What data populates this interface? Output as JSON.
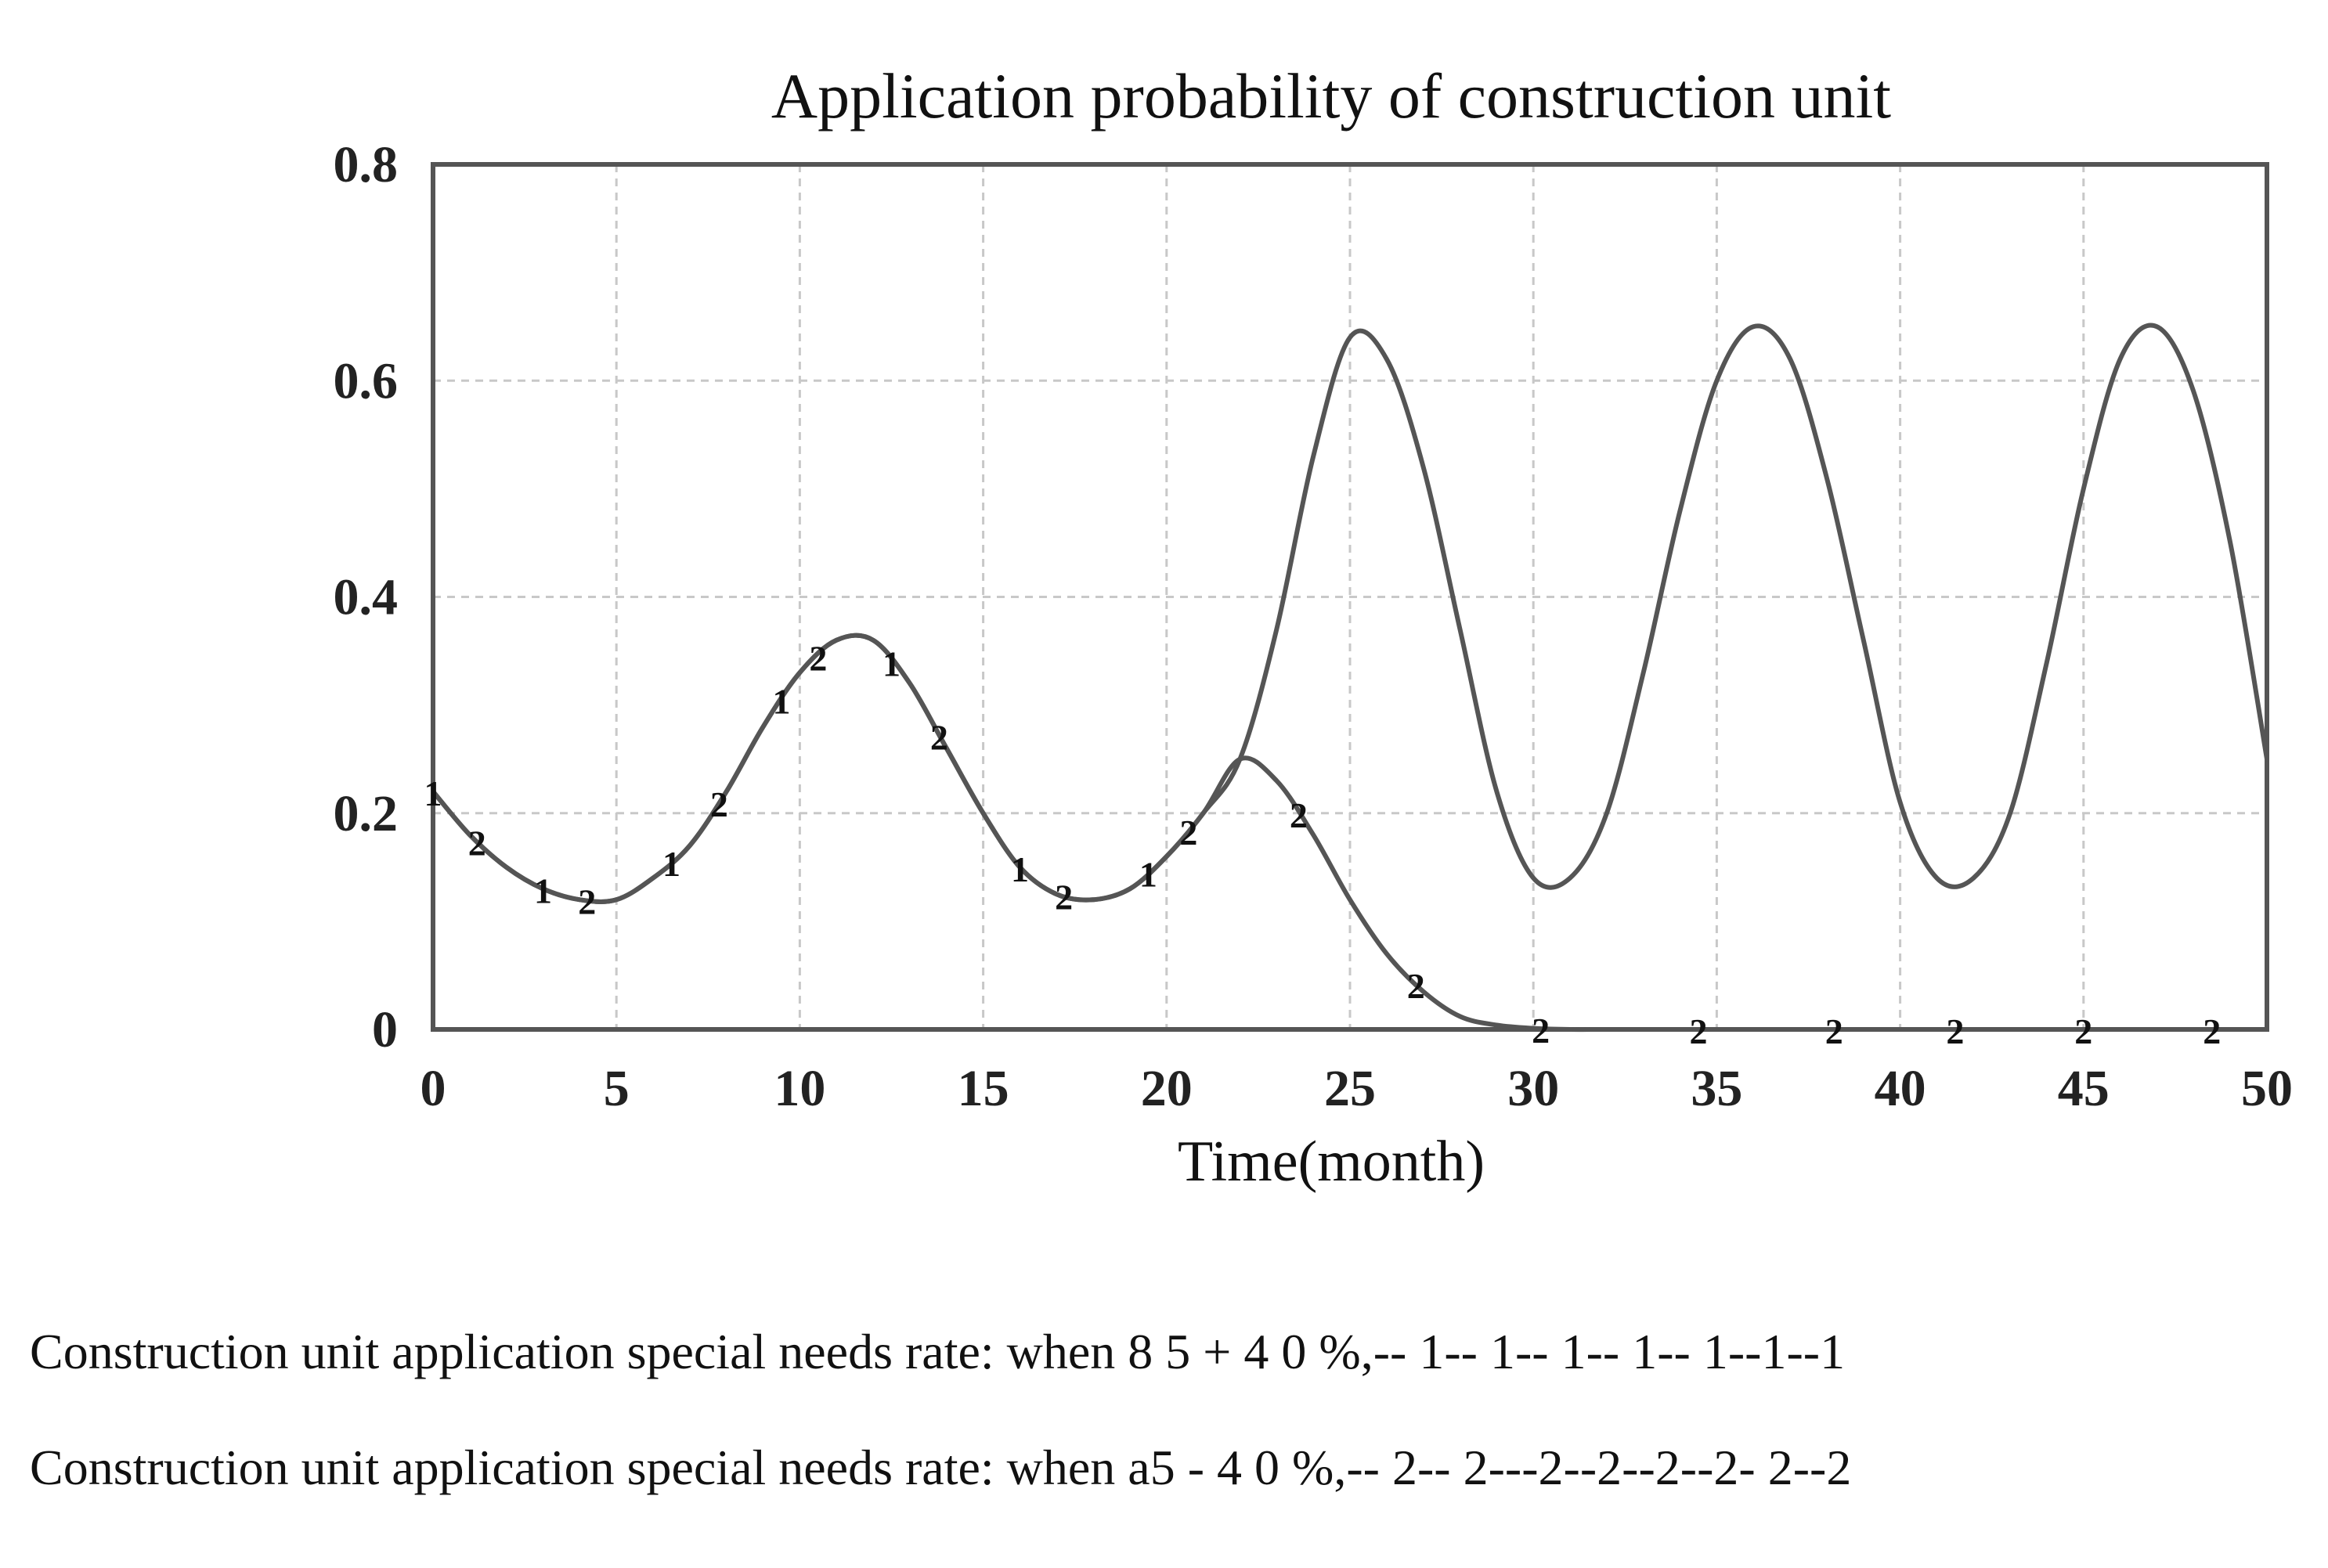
{
  "chart_data": {
    "type": "line",
    "title": "Application probability of construction unit",
    "xlabel": "Time(month)",
    "ylabel": "",
    "xlim": [
      0,
      50
    ],
    "ylim": [
      0,
      0.8
    ],
    "xticks": [
      0,
      5,
      10,
      15,
      20,
      25,
      30,
      35,
      40,
      45,
      50
    ],
    "yticks": [
      0,
      0.2,
      0.4,
      0.6,
      0.8
    ],
    "ytick_labels": [
      "0",
      "0.2",
      "0.4",
      "0.6",
      "0.8"
    ],
    "grid": true,
    "series": [
      {
        "name": "1",
        "marker_label": "1",
        "x": [
          0,
          1,
          2,
          3,
          4,
          5,
          6,
          7,
          8,
          9,
          10,
          11,
          12,
          13,
          14,
          15,
          16,
          17,
          18,
          19,
          20,
          21,
          22,
          23,
          24,
          25,
          26,
          27,
          28,
          29,
          30,
          31,
          32,
          33,
          34,
          35,
          36,
          37,
          38,
          39,
          40,
          41,
          42,
          43,
          44,
          45,
          46,
          47,
          48,
          49,
          50
        ],
        "values": [
          0.22,
          0.18,
          0.15,
          0.13,
          0.12,
          0.12,
          0.14,
          0.17,
          0.22,
          0.28,
          0.33,
          0.36,
          0.36,
          0.32,
          0.26,
          0.2,
          0.15,
          0.125,
          0.12,
          0.13,
          0.16,
          0.2,
          0.25,
          0.37,
          0.53,
          0.64,
          0.62,
          0.52,
          0.37,
          0.22,
          0.14,
          0.14,
          0.2,
          0.33,
          0.48,
          0.6,
          0.65,
          0.62,
          0.51,
          0.36,
          0.21,
          0.14,
          0.14,
          0.2,
          0.34,
          0.5,
          0.62,
          0.65,
          0.59,
          0.45,
          0.25
        ],
        "marker_x": [
          0,
          3,
          6.5,
          9.5,
          12.5,
          16,
          19.5
        ]
      },
      {
        "name": "2",
        "marker_label": "2",
        "x": [
          0,
          1,
          2,
          3,
          4,
          5,
          6,
          7,
          8,
          9,
          10,
          11,
          12,
          13,
          14,
          15,
          16,
          17,
          18,
          19,
          20,
          21,
          22,
          23,
          24,
          25,
          26,
          27,
          28,
          29,
          30,
          31,
          32,
          33,
          34,
          35,
          36,
          37,
          38,
          39,
          40,
          41,
          42,
          43,
          44,
          45,
          46,
          47,
          48,
          49,
          50
        ],
        "values": [
          0.22,
          0.18,
          0.15,
          0.13,
          0.12,
          0.12,
          0.14,
          0.17,
          0.22,
          0.28,
          0.33,
          0.36,
          0.36,
          0.32,
          0.26,
          0.2,
          0.15,
          0.125,
          0.12,
          0.13,
          0.16,
          0.2,
          0.25,
          0.23,
          0.18,
          0.12,
          0.07,
          0.035,
          0.012,
          0.004,
          0.001,
          0,
          0,
          0,
          0,
          0,
          0,
          0,
          0,
          0,
          0,
          0,
          0,
          0,
          0,
          0,
          0,
          0,
          0,
          0,
          0
        ],
        "marker_x": [
          1.2,
          4.2,
          7.8,
          10.5,
          13.8,
          17.2,
          20.6,
          23.6,
          26.8,
          30.2,
          34.5,
          38.2,
          41.5,
          45,
          48.5
        ]
      }
    ]
  },
  "legend": {
    "line1": "Construction unit application special needs rate: when 8 5 + 4 0 %,-- 1-- 1-- 1-- 1-- 1--1--1",
    "line2": "Construction unit application special needs rate: when a5 - 4 0 %,-- 2-- 2---2--2--2--2- 2--2"
  }
}
